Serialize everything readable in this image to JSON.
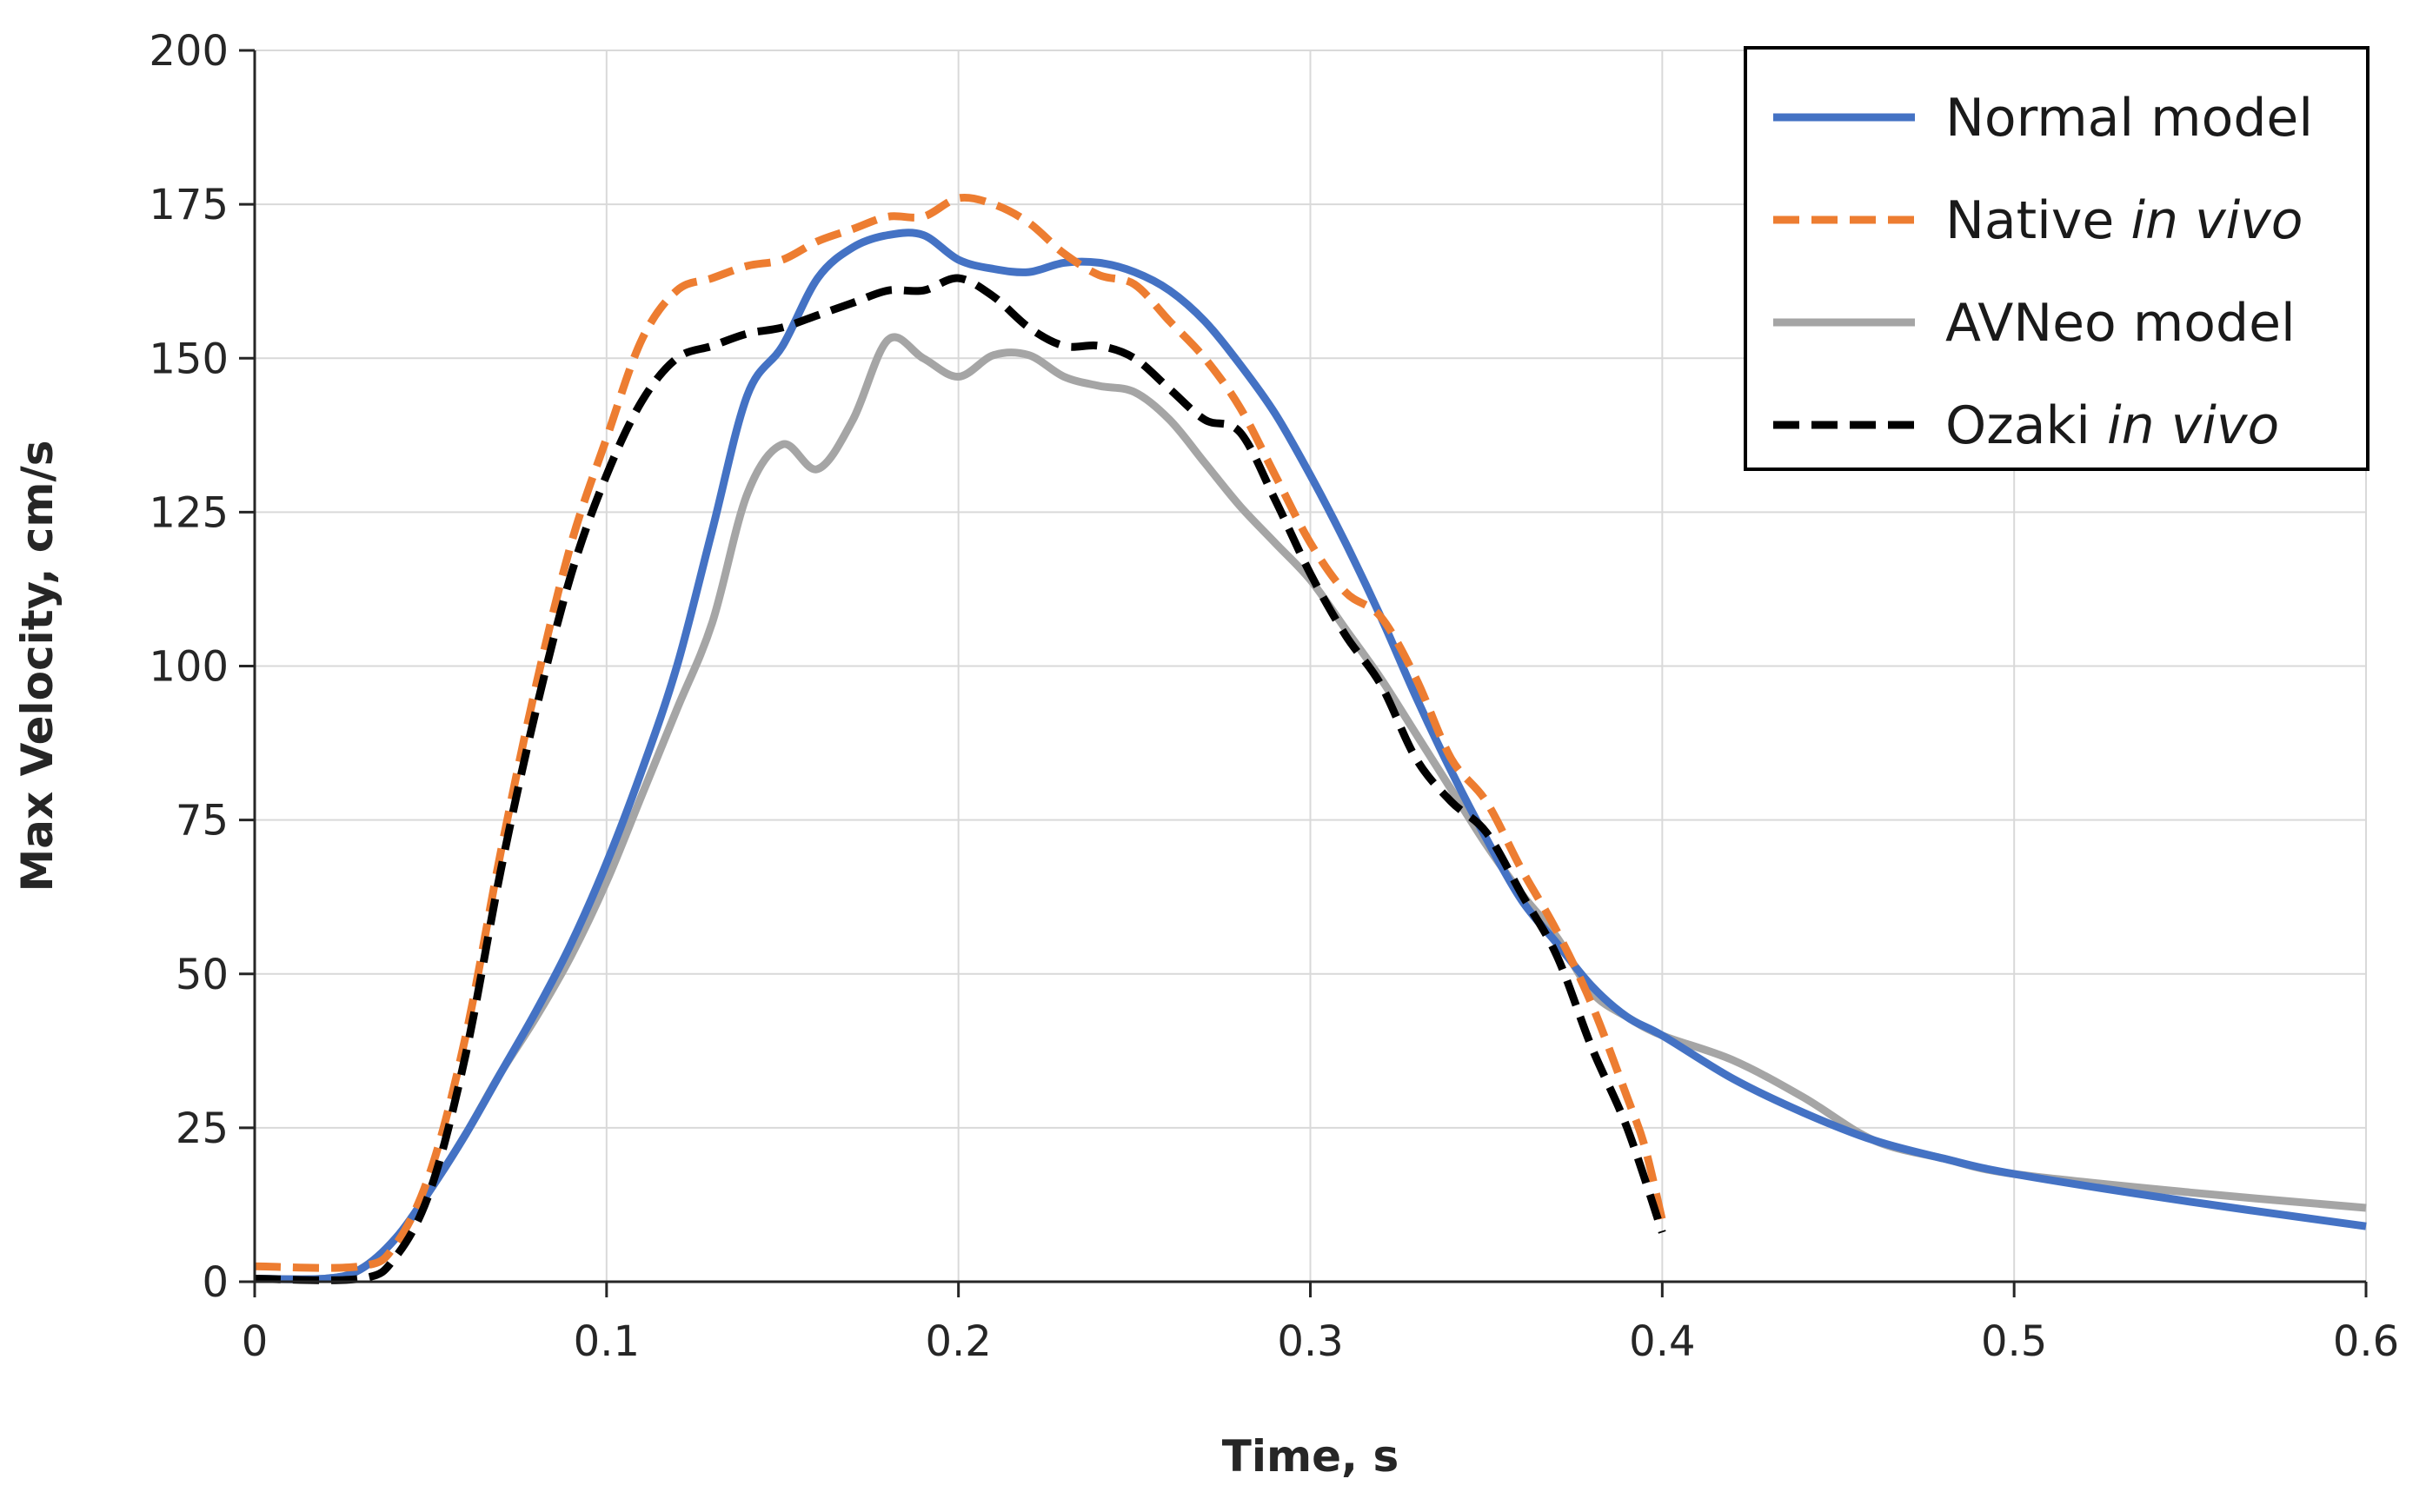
{
  "chart_data": {
    "type": "line",
    "title": "",
    "xlabel": "Time, s",
    "ylabel": "Max Velocity, cm/s",
    "xlim": [
      0,
      0.6
    ],
    "ylim": [
      0,
      200
    ],
    "xticks": [
      0,
      0.1,
      0.2,
      0.3,
      0.4,
      0.5,
      0.6
    ],
    "xtick_labels": [
      "0",
      "0.1",
      "0.2",
      "0.3",
      "0.4",
      "0.5",
      "0.6"
    ],
    "yticks": [
      0,
      25,
      50,
      75,
      100,
      125,
      150,
      175,
      200
    ],
    "ytick_labels": [
      "0",
      "25",
      "50",
      "75",
      "100",
      "125",
      "150",
      "175",
      "200"
    ],
    "grid": true,
    "legend_position": "top-right",
    "series": [
      {
        "name": "Normal model",
        "name_parts": [
          {
            "text": "Normal model",
            "italic": false
          }
        ],
        "color": "#4472C4",
        "style": "solid",
        "points": [
          [
            0,
            0.5
          ],
          [
            0.02,
            0.5
          ],
          [
            0.03,
            2
          ],
          [
            0.04,
            7
          ],
          [
            0.05,
            15
          ],
          [
            0.06,
            24
          ],
          [
            0.07,
            34
          ],
          [
            0.08,
            44
          ],
          [
            0.09,
            55
          ],
          [
            0.1,
            68
          ],
          [
            0.11,
            83
          ],
          [
            0.12,
            100
          ],
          [
            0.13,
            122
          ],
          [
            0.14,
            144
          ],
          [
            0.15,
            152
          ],
          [
            0.16,
            163
          ],
          [
            0.17,
            168
          ],
          [
            0.18,
            170
          ],
          [
            0.19,
            170
          ],
          [
            0.2,
            166
          ],
          [
            0.21,
            164.5
          ],
          [
            0.22,
            164
          ],
          [
            0.23,
            165.5
          ],
          [
            0.24,
            165.5
          ],
          [
            0.25,
            164
          ],
          [
            0.26,
            161
          ],
          [
            0.27,
            156
          ],
          [
            0.28,
            149
          ],
          [
            0.29,
            141
          ],
          [
            0.3,
            131
          ],
          [
            0.31,
            120
          ],
          [
            0.32,
            108
          ],
          [
            0.33,
            95
          ],
          [
            0.34,
            83
          ],
          [
            0.35,
            72
          ],
          [
            0.36,
            62
          ],
          [
            0.37,
            55
          ],
          [
            0.38,
            48
          ],
          [
            0.39,
            43
          ],
          [
            0.4,
            40
          ],
          [
            0.42,
            33
          ],
          [
            0.44,
            27.5
          ],
          [
            0.46,
            23
          ],
          [
            0.48,
            20
          ],
          [
            0.5,
            17.5
          ],
          [
            0.55,
            13
          ],
          [
            0.6,
            9
          ]
        ]
      },
      {
        "name": "Native in vivo",
        "name_parts": [
          {
            "text": "Native ",
            "italic": false
          },
          {
            "text": "in vivo",
            "italic": true
          }
        ],
        "color": "#ED7D31",
        "style": "dashed",
        "points": [
          [
            0,
            2.5
          ],
          [
            0.03,
            2.5
          ],
          [
            0.04,
            6
          ],
          [
            0.05,
            18
          ],
          [
            0.06,
            40
          ],
          [
            0.07,
            70
          ],
          [
            0.08,
            97
          ],
          [
            0.09,
            120
          ],
          [
            0.1,
            137
          ],
          [
            0.11,
            153
          ],
          [
            0.12,
            161
          ],
          [
            0.13,
            163
          ],
          [
            0.14,
            165
          ],
          [
            0.15,
            166
          ],
          [
            0.16,
            169
          ],
          [
            0.17,
            171
          ],
          [
            0.18,
            173
          ],
          [
            0.19,
            173
          ],
          [
            0.2,
            176
          ],
          [
            0.21,
            175
          ],
          [
            0.22,
            172
          ],
          [
            0.23,
            167
          ],
          [
            0.24,
            163.5
          ],
          [
            0.25,
            162
          ],
          [
            0.26,
            156
          ],
          [
            0.27,
            150
          ],
          [
            0.28,
            142
          ],
          [
            0.29,
            131
          ],
          [
            0.3,
            120
          ],
          [
            0.31,
            112
          ],
          [
            0.32,
            108
          ],
          [
            0.33,
            98
          ],
          [
            0.34,
            85
          ],
          [
            0.35,
            78
          ],
          [
            0.36,
            67
          ],
          [
            0.37,
            57
          ],
          [
            0.38,
            45
          ],
          [
            0.39,
            30
          ],
          [
            0.395,
            22
          ],
          [
            0.4,
            10
          ]
        ]
      },
      {
        "name": "AVNeo model",
        "name_parts": [
          {
            "text": "AVNeo model",
            "italic": false
          }
        ],
        "color": "#A5A5A5",
        "style": "solid",
        "points": [
          [
            0,
            0.5
          ],
          [
            0.02,
            0.5
          ],
          [
            0.03,
            2
          ],
          [
            0.04,
            7
          ],
          [
            0.05,
            15
          ],
          [
            0.06,
            24
          ],
          [
            0.07,
            34
          ],
          [
            0.08,
            43
          ],
          [
            0.09,
            53
          ],
          [
            0.1,
            65
          ],
          [
            0.11,
            79
          ],
          [
            0.12,
            93
          ],
          [
            0.13,
            107
          ],
          [
            0.14,
            128
          ],
          [
            0.15,
            136
          ],
          [
            0.16,
            132
          ],
          [
            0.17,
            140
          ],
          [
            0.18,
            153
          ],
          [
            0.19,
            150
          ],
          [
            0.2,
            147
          ],
          [
            0.21,
            150.5
          ],
          [
            0.22,
            150.5
          ],
          [
            0.23,
            147
          ],
          [
            0.24,
            145.5
          ],
          [
            0.25,
            144.5
          ],
          [
            0.26,
            140
          ],
          [
            0.27,
            133
          ],
          [
            0.28,
            126
          ],
          [
            0.29,
            120
          ],
          [
            0.3,
            114
          ],
          [
            0.31,
            106
          ],
          [
            0.32,
            98
          ],
          [
            0.33,
            89
          ],
          [
            0.34,
            80
          ],
          [
            0.35,
            71
          ],
          [
            0.36,
            63
          ],
          [
            0.37,
            56
          ],
          [
            0.38,
            47
          ],
          [
            0.39,
            43
          ],
          [
            0.4,
            40
          ],
          [
            0.42,
            36
          ],
          [
            0.44,
            30
          ],
          [
            0.46,
            23
          ],
          [
            0.48,
            20
          ],
          [
            0.5,
            17.5
          ],
          [
            0.55,
            14.5
          ],
          [
            0.6,
            12
          ]
        ]
      },
      {
        "name": "Ozaki in vivo",
        "name_parts": [
          {
            "text": "Ozaki ",
            "italic": false
          },
          {
            "text": "in vivo",
            "italic": true
          }
        ],
        "color": "#000000",
        "style": "dashed",
        "points": [
          [
            0,
            0.5
          ],
          [
            0.03,
            0.5
          ],
          [
            0.04,
            4
          ],
          [
            0.05,
            15
          ],
          [
            0.06,
            37
          ],
          [
            0.07,
            67
          ],
          [
            0.08,
            93
          ],
          [
            0.09,
            115
          ],
          [
            0.1,
            131
          ],
          [
            0.11,
            143
          ],
          [
            0.12,
            150
          ],
          [
            0.13,
            152
          ],
          [
            0.14,
            154
          ],
          [
            0.15,
            155
          ],
          [
            0.16,
            157
          ],
          [
            0.17,
            159
          ],
          [
            0.18,
            161
          ],
          [
            0.19,
            161
          ],
          [
            0.2,
            163
          ],
          [
            0.21,
            160
          ],
          [
            0.22,
            155
          ],
          [
            0.23,
            152
          ],
          [
            0.24,
            152
          ],
          [
            0.25,
            150
          ],
          [
            0.26,
            145
          ],
          [
            0.27,
            140
          ],
          [
            0.28,
            138
          ],
          [
            0.29,
            127
          ],
          [
            0.3,
            115
          ],
          [
            0.31,
            105
          ],
          [
            0.32,
            97
          ],
          [
            0.33,
            85
          ],
          [
            0.34,
            78
          ],
          [
            0.35,
            73
          ],
          [
            0.36,
            63
          ],
          [
            0.37,
            53
          ],
          [
            0.38,
            38
          ],
          [
            0.39,
            25
          ],
          [
            0.4,
            8
          ]
        ]
      }
    ]
  }
}
